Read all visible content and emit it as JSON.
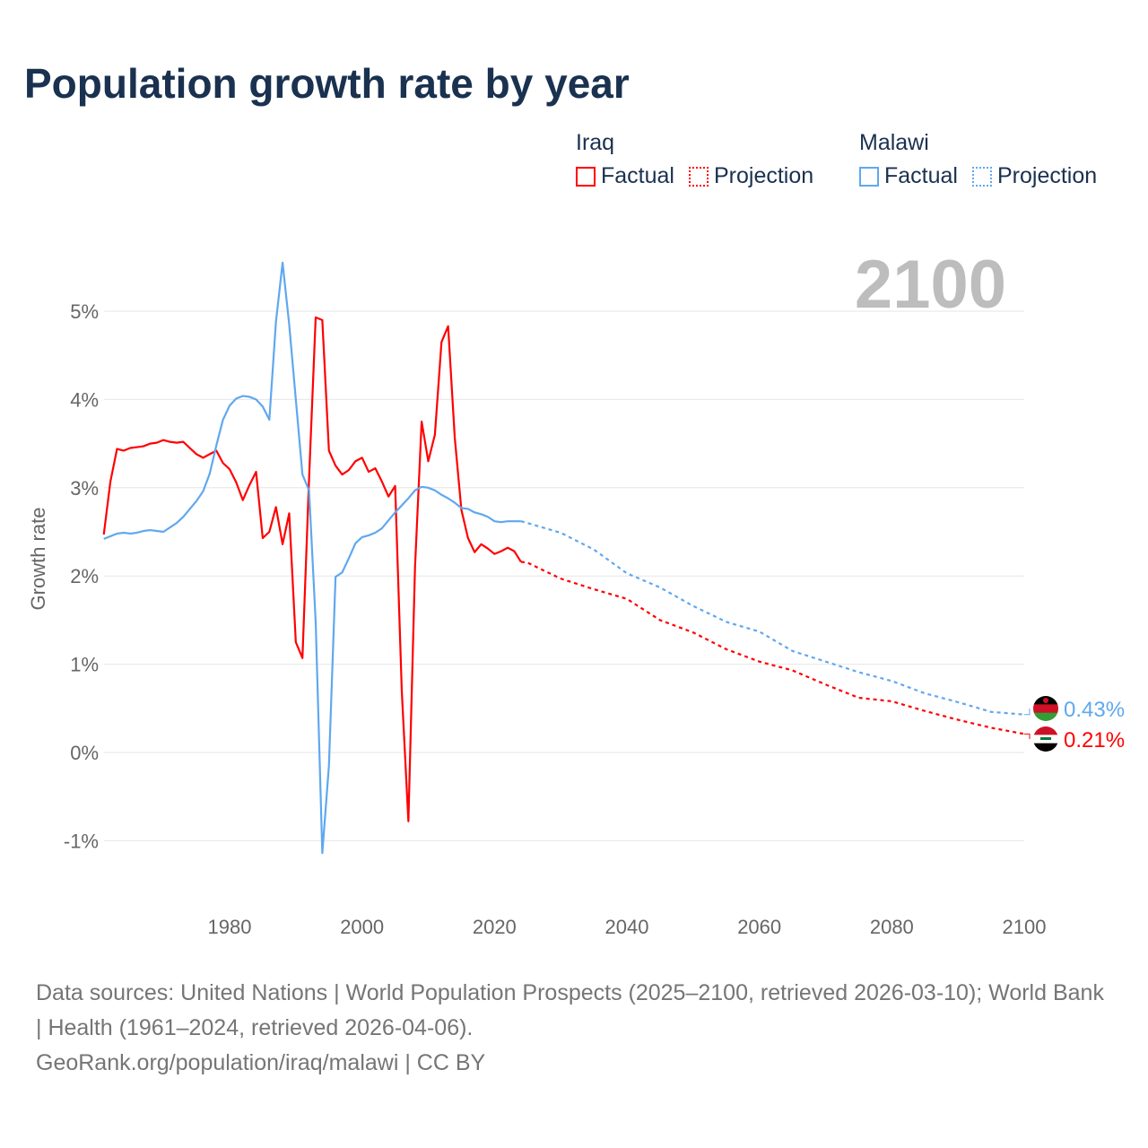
{
  "title": "Population growth rate by year",
  "current_year": "2100",
  "legend": [
    {
      "group": "Iraq",
      "factual": "Factual",
      "projection": "Projection",
      "color": "#ff0000"
    },
    {
      "group": "Malawi",
      "factual": "Factual",
      "projection": "Projection",
      "color": "#5fa8ef"
    }
  ],
  "footer": {
    "sources": "Data sources: United Nations | World Population Prospects (2025–2100, retrieved 2026-03-10); World Bank | Health (1961–2024, retrieved 2026-04-06).",
    "credit": "GeoRank.org/population/iraq/malawi | CC BY"
  },
  "chart_data": {
    "type": "line",
    "title": "Population growth rate by year",
    "xlabel": "",
    "ylabel": "Growth rate",
    "xlim": [
      1961,
      2100
    ],
    "ylim": [
      -1.5,
      5.6
    ],
    "x_ticks": [
      1980,
      2000,
      2020,
      2040,
      2060,
      2080,
      2100
    ],
    "x_tick_labels": [
      "1980",
      "2000",
      "2020",
      "2040",
      "2060",
      "2080",
      "2100"
    ],
    "y_ticks": [
      -1,
      0,
      1,
      2,
      3,
      4,
      5
    ],
    "y_tick_labels": [
      "-1%",
      "0%",
      "1%",
      "2%",
      "3%",
      "4%",
      "5%"
    ],
    "grid": true,
    "legend_position": "top-right",
    "series": [
      {
        "name": "Iraq",
        "color": "#ff0000",
        "end_label": "0.21%",
        "factual": {
          "x_start": 1961,
          "values": [
            2.47,
            3.07,
            3.44,
            3.42,
            3.45,
            3.46,
            3.47,
            3.5,
            3.51,
            3.54,
            3.52,
            3.51,
            3.52,
            3.45,
            3.38,
            3.34,
            3.38,
            3.42,
            3.28,
            3.21,
            3.06,
            2.86,
            3.03,
            3.18,
            2.43,
            2.5,
            2.78,
            2.36,
            2.71,
            1.25,
            1.07,
            3.1,
            4.93,
            4.9,
            3.42,
            3.25,
            3.15,
            3.2,
            3.3,
            3.34,
            3.18,
            3.22,
            3.07,
            2.9,
            3.02,
            0.7,
            -0.78,
            2.1,
            3.75,
            3.3,
            3.6,
            4.65,
            4.83,
            3.57,
            2.75,
            2.43,
            2.27,
            2.36,
            2.31,
            2.25,
            2.28,
            2.32,
            2.28,
            2.16
          ]
        },
        "projection": {
          "x": [
            2024,
            2025,
            2030,
            2035,
            2040,
            2045,
            2050,
            2055,
            2060,
            2065,
            2070,
            2075,
            2080,
            2085,
            2090,
            2095,
            2100
          ],
          "values": [
            2.16,
            2.15,
            1.97,
            1.85,
            1.74,
            1.5,
            1.36,
            1.17,
            1.03,
            0.93,
            0.77,
            0.62,
            0.58,
            0.47,
            0.37,
            0.28,
            0.21
          ]
        }
      },
      {
        "name": "Malawi",
        "color": "#5fa8ef",
        "end_label": "0.43%",
        "factual": {
          "x_start": 1961,
          "values": [
            2.42,
            2.45,
            2.48,
            2.49,
            2.48,
            2.49,
            2.51,
            2.52,
            2.51,
            2.5,
            2.55,
            2.6,
            2.67,
            2.76,
            2.85,
            2.96,
            3.16,
            3.48,
            3.77,
            3.93,
            4.01,
            4.04,
            4.03,
            4.0,
            3.92,
            3.77,
            4.88,
            5.55,
            4.85,
            4.0,
            3.15,
            2.97,
            1.48,
            -1.14,
            -0.15,
            1.99,
            2.04,
            2.2,
            2.37,
            2.44,
            2.46,
            2.49,
            2.54,
            2.63,
            2.72,
            2.8,
            2.88,
            2.97,
            3.01,
            3.0,
            2.97,
            2.92,
            2.88,
            2.83,
            2.77,
            2.76,
            2.72,
            2.7,
            2.67,
            2.62,
            2.61,
            2.62,
            2.62,
            2.62
          ]
        },
        "projection": {
          "x": [
            2024,
            2025,
            2030,
            2035,
            2040,
            2045,
            2050,
            2055,
            2060,
            2065,
            2070,
            2075,
            2080,
            2085,
            2090,
            2095,
            2100
          ],
          "values": [
            2.62,
            2.6,
            2.49,
            2.3,
            2.03,
            1.87,
            1.66,
            1.48,
            1.37,
            1.15,
            1.03,
            0.91,
            0.81,
            0.67,
            0.57,
            0.46,
            0.43
          ]
        }
      }
    ]
  }
}
